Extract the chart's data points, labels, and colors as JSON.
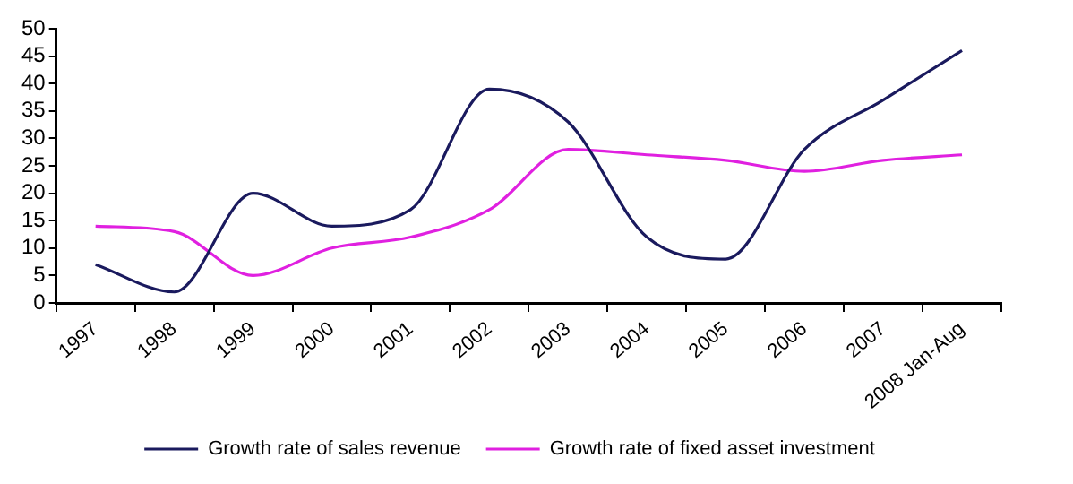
{
  "chart_data": {
    "type": "line",
    "categories": [
      "1997",
      "1998",
      "1999",
      "2000",
      "2001",
      "2002",
      "2003",
      "2004",
      "2005",
      "2006",
      "2007",
      "2008 Jan-Aug"
    ],
    "series": [
      {
        "name": "Growth rate of sales revenue",
        "color": "#1a1a5e",
        "values": [
          7,
          2,
          20,
          14,
          17,
          39,
          33,
          12,
          8,
          28,
          37,
          46
        ]
      },
      {
        "name": "Growth rate of fixed asset investment",
        "color": "#e020e0",
        "values": [
          14,
          13,
          5,
          10,
          12,
          17,
          28,
          27,
          26,
          24,
          26,
          27
        ]
      }
    ],
    "ylim": [
      0,
      50
    ],
    "yticks": [
      0,
      5,
      10,
      15,
      20,
      25,
      30,
      35,
      40,
      45,
      50
    ],
    "grid": false,
    "legend": "bottom",
    "marker": "none"
  }
}
